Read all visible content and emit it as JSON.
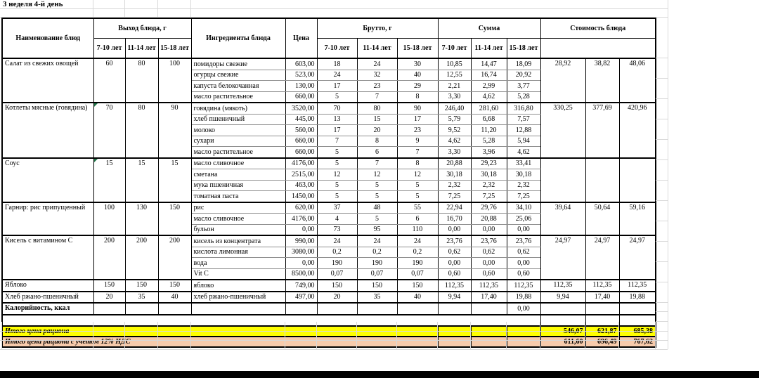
{
  "title": "3 неделя 4-й день",
  "table": {
    "headers": {
      "name": "Наименование блюд",
      "output": "Выход блюда, г",
      "ingredients": "Ингредиенты блюда",
      "price": "Цена",
      "gross": "Брутто, г",
      "sum": "Сумма",
      "cost": "Стоимость блюда",
      "age_groups": [
        "7-10 лет",
        "11-14 лет",
        "15-18 лет"
      ]
    },
    "dishes": [
      {
        "name": "Салат из свежих овощей",
        "output": [
          "60",
          "80",
          "100"
        ],
        "output_marker": false,
        "cost": [
          "28,92",
          "38,82",
          "48,06"
        ],
        "rows": [
          {
            "ingredient": "помидоры свежие",
            "price": "603,00",
            "gross": [
              "18",
              "24",
              "30"
            ],
            "sum": [
              "10,85",
              "14,47",
              "18,09"
            ]
          },
          {
            "ingredient": "огурцы свежие",
            "price": "523,00",
            "gross": [
              "24",
              "32",
              "40"
            ],
            "sum": [
              "12,55",
              "16,74",
              "20,92"
            ]
          },
          {
            "ingredient": "капуста белокочанная",
            "price": "130,00",
            "gross": [
              "17",
              "23",
              "29"
            ],
            "sum": [
              "2,21",
              "2,99",
              "3,77"
            ]
          },
          {
            "ingredient": "масло растительное",
            "price": "660,00",
            "gross": [
              "5",
              "7",
              "8"
            ],
            "sum": [
              "3,30",
              "4,62",
              "5,28"
            ]
          }
        ]
      },
      {
        "name": "Котлеты мясные (говядина)",
        "output": [
          "70",
          "80",
          "90"
        ],
        "output_marker": true,
        "cost": [
          "330,25",
          "377,69",
          "420,96"
        ],
        "rows": [
          {
            "ingredient": "говядина (мякоть)",
            "price": "3520,00",
            "gross": [
              "70",
              "80",
              "90"
            ],
            "sum": [
              "246,40",
              "281,60",
              "316,80"
            ]
          },
          {
            "ingredient": "хлеб пшеничный",
            "price": "445,00",
            "gross": [
              "13",
              "15",
              "17"
            ],
            "sum": [
              "5,79",
              "6,68",
              "7,57"
            ]
          },
          {
            "ingredient": "молоко",
            "price": "560,00",
            "gross": [
              "17",
              "20",
              "23"
            ],
            "sum": [
              "9,52",
              "11,20",
              "12,88"
            ]
          },
          {
            "ingredient": "сухари",
            "price": "660,00",
            "gross": [
              "7",
              "8",
              "9"
            ],
            "sum": [
              "4,62",
              "5,28",
              "5,94"
            ]
          },
          {
            "ingredient": "масло растительное",
            "price": "660,00",
            "gross": [
              "5",
              "6",
              "7"
            ],
            "sum": [
              "3,30",
              "3,96",
              "4,62"
            ]
          }
        ]
      },
      {
        "name": "Соус",
        "output": [
          "15",
          "15",
          "15"
        ],
        "output_marker": true,
        "cost": [
          "",
          "",
          ""
        ],
        "rows": [
          {
            "ingredient": "масло сливочное",
            "price": "4176,00",
            "gross": [
              "5",
              "7",
              "8"
            ],
            "sum": [
              "20,88",
              "29,23",
              "33,41"
            ]
          },
          {
            "ingredient": "сметана",
            "price": "2515,00",
            "gross": [
              "12",
              "12",
              "12"
            ],
            "sum": [
              "30,18",
              "30,18",
              "30,18"
            ]
          },
          {
            "ingredient": "мука пшеничная",
            "price": "463,00",
            "gross": [
              "5",
              "5",
              "5"
            ],
            "sum": [
              "2,32",
              "2,32",
              "2,32"
            ]
          },
          {
            "ingredient": "томатная паста",
            "price": "1450,00",
            "gross": [
              "5",
              "5",
              "5"
            ],
            "sum": [
              "7,25",
              "7,25",
              "7,25"
            ]
          }
        ]
      },
      {
        "name": "Гарнир: рис припущенный",
        "output": [
          "100",
          "130",
          "150"
        ],
        "output_marker": false,
        "cost": [
          "39,64",
          "50,64",
          "59,16"
        ],
        "rows": [
          {
            "ingredient": "рис",
            "price": "620,00",
            "gross": [
              "37",
              "48",
              "55"
            ],
            "sum": [
              "22,94",
              "29,76",
              "34,10"
            ]
          },
          {
            "ingredient": "масло сливочное",
            "price": "4176,00",
            "gross": [
              "4",
              "5",
              "6"
            ],
            "sum": [
              "16,70",
              "20,88",
              "25,06"
            ]
          },
          {
            "ingredient": "бульон",
            "price": "0,00",
            "gross": [
              "73",
              "95",
              "110"
            ],
            "sum": [
              "0,00",
              "0,00",
              "0,00"
            ]
          }
        ]
      },
      {
        "name": "Кисель с витамином С",
        "output": [
          "200",
          "200",
          "200"
        ],
        "output_marker": false,
        "cost": [
          "24,97",
          "24,97",
          "24,97"
        ],
        "rows": [
          {
            "ingredient": "кисель из концентрата",
            "price": "990,00",
            "gross": [
              "24",
              "24",
              "24"
            ],
            "sum": [
              "23,76",
              "23,76",
              "23,76"
            ]
          },
          {
            "ingredient": "кислота лимонная",
            "price": "3080,00",
            "gross": [
              "0,2",
              "0,2",
              "0,2"
            ],
            "sum": [
              "0,62",
              "0,62",
              "0,62"
            ]
          },
          {
            "ingredient": "вода",
            "price": "0,00",
            "gross": [
              "190",
              "190",
              "190"
            ],
            "sum": [
              "0,00",
              "0,00",
              "0,00"
            ]
          },
          {
            "ingredient": "Vit C",
            "price": "8500,00",
            "gross": [
              "0,07",
              "0,07",
              "0,07"
            ],
            "sum": [
              "0,60",
              "0,60",
              "0,60"
            ]
          }
        ]
      },
      {
        "name": "Яблоко",
        "output": [
          "150",
          "150",
          "150"
        ],
        "output_marker": false,
        "cost": [
          "112,35",
          "112,35",
          "112,35"
        ],
        "rows": [
          {
            "ingredient": "яблоко",
            "price": "749,00",
            "gross": [
              "150",
              "150",
              "150"
            ],
            "sum": [
              "112,35",
              "112,35",
              "112,35"
            ]
          }
        ]
      },
      {
        "name": "Хлеб ржано-пшеничный",
        "output": [
          "20",
          "35",
          "40"
        ],
        "output_marker": false,
        "cost": [
          "9,94",
          "17,40",
          "19,88"
        ],
        "rows": [
          {
            "ingredient": "хлеб ржано-пшеничный",
            "price": "497,00",
            "gross": [
              "20",
              "35",
              "40"
            ],
            "sum": [
              "9,94",
              "17,40",
              "19,88"
            ]
          }
        ]
      }
    ],
    "calories_row": {
      "label": "Калорийность, ккал",
      "sum_15_18": "0,00"
    },
    "totals": [
      {
        "label": "Итого цена рациона",
        "values": [
          "546,07",
          "621,87",
          "685,38"
        ],
        "bg": "#FFFF00"
      },
      {
        "label": "Итого цена рациона с учетом 12% НДС",
        "values": [
          "611,60",
          "696,49",
          "767,62"
        ],
        "bg": "#F7CBAC"
      }
    ]
  }
}
